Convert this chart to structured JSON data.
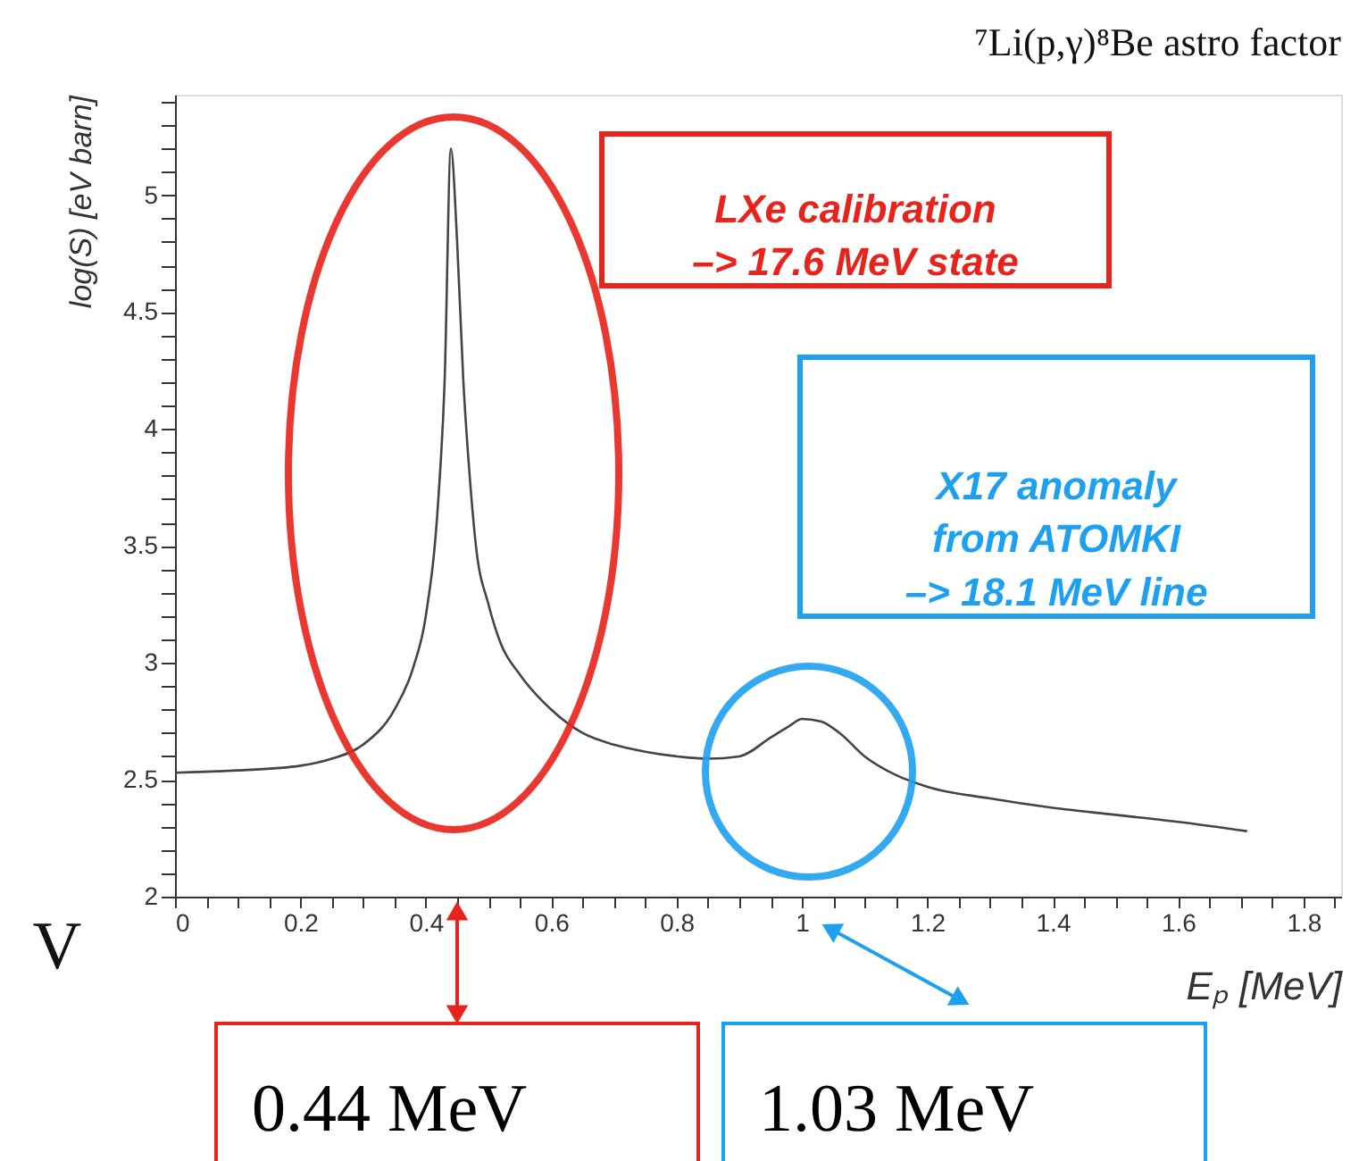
{
  "chart_data": {
    "type": "line",
    "title": "⁷Li(p,γ)⁸Be  astro factor",
    "xlabel": "Eₚ [MeV]",
    "ylabel": "log(S) [eV barn]",
    "series": [
      {
        "color": "#444444",
        "x": [
          0,
          0.1,
          0.2,
          0.25,
          0.3,
          0.35,
          0.38,
          0.4,
          0.42,
          0.43,
          0.44,
          0.45,
          0.46,
          0.47,
          0.48,
          0.5,
          0.52,
          0.55,
          0.6,
          0.65,
          0.7,
          0.75,
          0.8,
          0.85,
          0.9,
          0.95,
          0.98,
          1.0,
          1.03,
          1.06,
          1.1,
          1.15,
          1.2,
          1.3,
          1.4,
          1.5,
          1.6,
          1.71
        ],
        "values": [
          2.53,
          2.54,
          2.56,
          2.59,
          2.65,
          2.8,
          2.98,
          3.2,
          3.7,
          4.2,
          5.2,
          4.8,
          4.2,
          3.8,
          3.5,
          3.25,
          3.08,
          2.95,
          2.8,
          2.7,
          2.65,
          2.62,
          2.6,
          2.59,
          2.6,
          2.68,
          2.73,
          2.76,
          2.75,
          2.7,
          2.6,
          2.52,
          2.47,
          2.42,
          2.38,
          2.35,
          2.32,
          2.28
        ]
      }
    ],
    "xlim": [
      0,
      1.86
    ],
    "ylim": [
      2,
      5.43
    ],
    "xticks": [
      0,
      {
        "value": 0.05,
        "label": null
      },
      {
        "value": 0.1,
        "label": null
      },
      {
        "value": 0.15,
        "label": null
      },
      0.2,
      {
        "value": 0.25,
        "label": null
      },
      {
        "value": 0.3,
        "label": null
      },
      {
        "value": 0.35,
        "label": null
      },
      0.4,
      {
        "value": 0.45,
        "label": null
      },
      {
        "value": 0.5,
        "label": null
      },
      {
        "value": 0.55,
        "label": null
      },
      0.6,
      {
        "value": 0.65,
        "label": null
      },
      {
        "value": 0.7,
        "label": null
      },
      {
        "value": 0.75,
        "label": null
      },
      0.8,
      {
        "value": 0.85,
        "label": null
      },
      {
        "value": 0.9,
        "label": null
      },
      {
        "value": 0.95,
        "label": null
      },
      1,
      {
        "value": 1.05,
        "label": null
      },
      {
        "value": 1.1,
        "label": null
      },
      {
        "value": 1.15,
        "label": null
      },
      1.2,
      {
        "value": 1.25,
        "label": null
      },
      {
        "value": 1.3,
        "label": null
      },
      {
        "value": 1.35,
        "label": null
      },
      1.4,
      {
        "value": 1.45,
        "label": null
      },
      {
        "value": 1.5,
        "label": null
      },
      {
        "value": 1.55,
        "label": null
      },
      1.6,
      {
        "value": 1.65,
        "label": null
      },
      {
        "value": 1.7,
        "label": null
      },
      {
        "value": 1.75,
        "label": null
      },
      1.8,
      {
        "value": 1.85,
        "label": null
      }
    ],
    "yticks": [
      2,
      {
        "value": 2.1,
        "label": null
      },
      {
        "value": 2.2,
        "label": null
      },
      {
        "value": 2.3,
        "label": null
      },
      {
        "value": 2.4,
        "label": null
      },
      2.5,
      {
        "value": 2.6,
        "label": null
      },
      {
        "value": 2.7,
        "label": null
      },
      {
        "value": 2.8,
        "label": null
      },
      {
        "value": 2.9,
        "label": null
      },
      3,
      {
        "value": 3.1,
        "label": null
      },
      {
        "value": 3.2,
        "label": null
      },
      {
        "value": 3.3,
        "label": null
      },
      {
        "value": 3.4,
        "label": null
      },
      3.5,
      {
        "value": 3.6,
        "label": null
      },
      {
        "value": 3.7,
        "label": null
      },
      {
        "value": 3.8,
        "label": null
      },
      {
        "value": 3.9,
        "label": null
      },
      4,
      {
        "value": 4.1,
        "label": null
      },
      {
        "value": 4.2,
        "label": null
      },
      {
        "value": 4.3,
        "label": null
      },
      {
        "value": 4.4,
        "label": null
      },
      4.5,
      {
        "value": 4.6,
        "label": null
      },
      {
        "value": 4.7,
        "label": null
      },
      {
        "value": 4.8,
        "label": null
      },
      {
        "value": 4.9,
        "label": null
      },
      5,
      {
        "value": 5.1,
        "label": null
      },
      {
        "value": 5.2,
        "label": null
      },
      {
        "value": 5.3,
        "label": null
      },
      {
        "value": 5.4,
        "label": null
      }
    ],
    "grid": false,
    "marker": "none",
    "line_style": "solid",
    "annotations": [
      "LXe calibration\n–> 17.6 MeV state",
      "X17 anomaly\nfrom ATOMKI\n–> 18.1 MeV line",
      "V",
      "0.44 MeV",
      "1.03 MeV"
    ]
  }
}
